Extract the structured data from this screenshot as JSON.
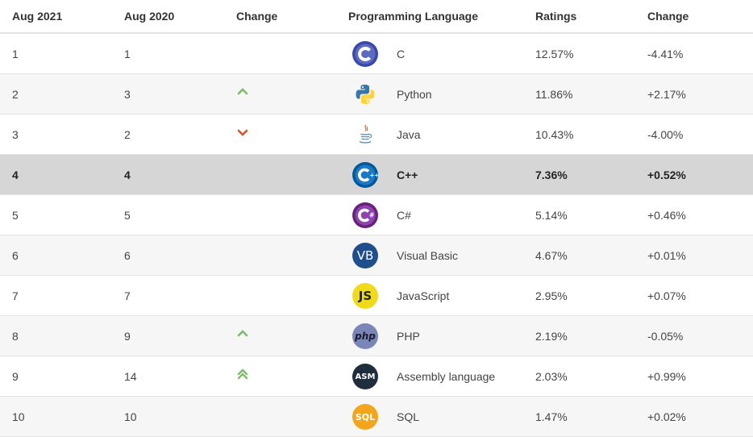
{
  "headers": {
    "aug2021": "Aug 2021",
    "aug2020": "Aug 2020",
    "change": "Change",
    "language": "Programming Language",
    "ratings": "Ratings",
    "delta": "Change"
  },
  "rows": [
    {
      "aug2021": "1",
      "aug2020": "1",
      "trend": "none",
      "icon": "c-logo-icon",
      "language": "C",
      "rating": "12.57%",
      "delta": "-4.41%"
    },
    {
      "aug2021": "2",
      "aug2020": "3",
      "trend": "up",
      "icon": "python-logo-icon",
      "language": "Python",
      "rating": "11.86%",
      "delta": "+2.17%"
    },
    {
      "aug2021": "3",
      "aug2020": "2",
      "trend": "down",
      "icon": "java-logo-icon",
      "language": "Java",
      "rating": "10.43%",
      "delta": "-4.00%"
    },
    {
      "aug2021": "4",
      "aug2020": "4",
      "trend": "none",
      "icon": "cpp-logo-icon",
      "language": "C++",
      "rating": "7.36%",
      "delta": "+0.52%"
    },
    {
      "aug2021": "5",
      "aug2020": "5",
      "trend": "none",
      "icon": "csharp-logo-icon",
      "language": "C#",
      "rating": "5.14%",
      "delta": "+0.46%"
    },
    {
      "aug2021": "6",
      "aug2020": "6",
      "trend": "none",
      "icon": "visual-basic-logo-icon",
      "language": "Visual Basic",
      "rating": "4.67%",
      "delta": "+0.01%",
      "icon_text": "VB"
    },
    {
      "aug2021": "7",
      "aug2020": "7",
      "trend": "none",
      "icon": "javascript-logo-icon",
      "language": "JavaScript",
      "rating": "2.95%",
      "delta": "+0.07%",
      "icon_text": "JS"
    },
    {
      "aug2021": "8",
      "aug2020": "9",
      "trend": "up",
      "icon": "php-logo-icon",
      "language": "PHP",
      "rating": "2.19%",
      "delta": "-0.05%",
      "icon_text": "php"
    },
    {
      "aug2021": "9",
      "aug2020": "14",
      "trend": "double-up",
      "icon": "assembly-logo-icon",
      "language": "Assembly language",
      "rating": "2.03%",
      "delta": "+0.99%",
      "icon_text": "ASM"
    },
    {
      "aug2021": "10",
      "aug2020": "10",
      "trend": "none",
      "icon": "sql-logo-icon",
      "language": "SQL",
      "rating": "1.47%",
      "delta": "+0.02%",
      "icon_text": "SQL"
    }
  ],
  "colors": {
    "up_arrow": "#7dbb6a",
    "down_arrow": "#d9532c",
    "highlight_row": "#d6d6d6"
  }
}
